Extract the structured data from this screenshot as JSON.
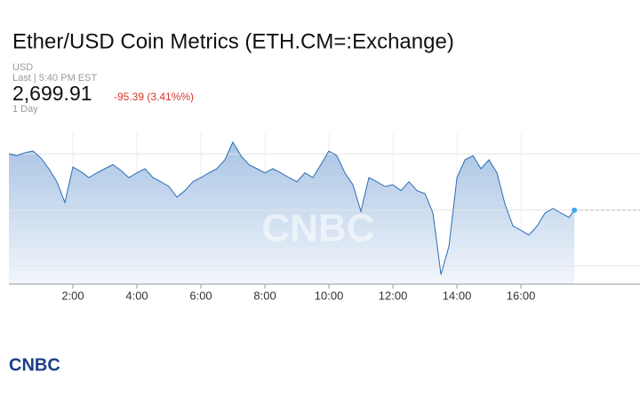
{
  "header": {
    "title": "Ether/USD Coin Metrics (ETH.CM=:Exchange)",
    "currency": "USD",
    "last_time": "Last | 5:40 PM EST",
    "price": "2,699.91",
    "change": "-95.39 (3.41%%)",
    "range": "1 Day"
  },
  "chart_data": {
    "type": "line",
    "color": "#2a6db5",
    "watermark": "CNBC",
    "x": [
      0,
      0.25,
      0.5,
      0.75,
      1,
      1.25,
      1.5,
      1.75,
      2,
      2.25,
      2.5,
      2.75,
      3,
      3.25,
      3.5,
      3.75,
      4,
      4.25,
      4.5,
      4.75,
      5,
      5.25,
      5.5,
      5.75,
      6,
      6.25,
      6.5,
      6.75,
      7,
      7.25,
      7.5,
      7.75,
      8,
      8.25,
      8.5,
      8.75,
      9,
      9.25,
      9.5,
      9.75,
      10,
      10.25,
      10.5,
      10.75,
      11,
      11.25,
      11.5,
      11.75,
      12,
      12.25,
      12.5,
      12.75,
      13,
      13.25,
      13.5,
      13.75,
      14,
      14.25,
      14.5,
      14.75,
      15,
      15.25,
      15.5,
      15.75,
      16,
      16.25,
      16.5,
      16.75,
      17,
      17.25,
      17.5,
      17.67
    ],
    "values": [
      2795,
      2792,
      2797,
      2800,
      2788,
      2770,
      2748,
      2713,
      2773,
      2765,
      2755,
      2763,
      2770,
      2777,
      2767,
      2755,
      2763,
      2770,
      2755,
      2748,
      2740,
      2722,
      2733,
      2748,
      2755,
      2763,
      2770,
      2785,
      2815,
      2792,
      2777,
      2770,
      2763,
      2770,
      2763,
      2755,
      2748,
      2763,
      2755,
      2777,
      2800,
      2792,
      2763,
      2743,
      2698,
      2755,
      2748,
      2740,
      2743,
      2733,
      2748,
      2733,
      2728,
      2695,
      2591,
      2639,
      2755,
      2785,
      2792,
      2770,
      2785,
      2763,
      2710,
      2673,
      2666,
      2658,
      2673,
      2695,
      2703,
      2695,
      2688,
      2699.91
    ],
    "xlim": [
      0,
      19.72
    ],
    "ylim": [
      2575,
      2830
    ],
    "xticks": [
      {
        "value": 2,
        "label": "2:00"
      },
      {
        "value": 4,
        "label": "4:00"
      },
      {
        "value": 6,
        "label": "6:00"
      },
      {
        "value": 8,
        "label": "8:00"
      },
      {
        "value": 10,
        "label": "10:00"
      },
      {
        "value": 12,
        "label": "12:00"
      },
      {
        "value": 14,
        "label": "14:00"
      },
      {
        "value": 16,
        "label": "16:00"
      }
    ],
    "gridlines": [
      2606,
      2700,
      2795
    ]
  },
  "footer": {
    "logo": "CNBC"
  }
}
